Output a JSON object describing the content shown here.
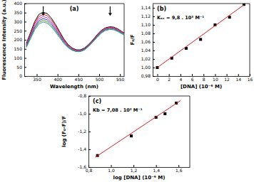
{
  "chart_data": [
    {
      "type": "line",
      "title": "(a)",
      "xlabel": "Wavelength (nm)",
      "ylabel": "Fluorescence Intensity (a.u.)",
      "x": [
        325,
        335,
        345,
        355,
        365,
        375,
        385,
        395,
        405,
        415,
        425,
        435,
        445,
        455,
        465,
        475,
        485,
        495,
        505,
        515,
        525,
        535,
        545,
        555,
        560
      ],
      "series": [
        {
          "color": "#000000",
          "line_style": "solid",
          "values": [
            180,
            240,
            300,
            340,
            352,
            345,
            320,
            285,
            245,
            205,
            175,
            155,
            145,
            145,
            155,
            175,
            200,
            228,
            252,
            266,
            272,
            270,
            260,
            245,
            238
          ]
        },
        {
          "color": "#e31a1c",
          "line_style": "solid",
          "values": [
            175,
            232,
            290,
            328,
            340,
            334,
            310,
            276,
            238,
            200,
            171,
            152,
            142,
            142,
            152,
            172,
            197,
            225,
            249,
            263,
            269,
            267,
            257,
            243,
            236
          ]
        },
        {
          "color": "#d62fd6",
          "line_style": "solid",
          "values": [
            170,
            225,
            280,
            316,
            328,
            322,
            299,
            267,
            231,
            195,
            167,
            149,
            140,
            140,
            150,
            170,
            195,
            222,
            246,
            260,
            266,
            264,
            254,
            240,
            233
          ]
        },
        {
          "color": "#1f3fd0",
          "line_style": "solid",
          "values": [
            166,
            218,
            270,
            305,
            317,
            311,
            289,
            258,
            224,
            190,
            163,
            146,
            138,
            138,
            148,
            168,
            192,
            219,
            243,
            257,
            263,
            261,
            251,
            237,
            231
          ]
        },
        {
          "color": "#6b8e23",
          "line_style": "solid",
          "values": [
            162,
            212,
            262,
            296,
            307,
            301,
            280,
            250,
            218,
            185,
            160,
            144,
            136,
            136,
            146,
            166,
            190,
            216,
            240,
            254,
            260,
            258,
            248,
            235,
            229
          ]
        },
        {
          "color": "#2a9d9d",
          "line_style": "solid",
          "values": [
            158,
            206,
            254,
            287,
            298,
            292,
            272,
            243,
            212,
            181,
            157,
            142,
            135,
            135,
            144,
            164,
            188,
            213,
            237,
            251,
            257,
            255,
            245,
            232,
            226
          ]
        }
      ],
      "xlim": [
        320,
        560
      ],
      "xticks": [
        350,
        400,
        450,
        500,
        550
      ],
      "ylim": [
        0,
        400
      ],
      "yticks": [
        0,
        50,
        100,
        150,
        200,
        250,
        300,
        350,
        400
      ],
      "grid": false
    },
    {
      "type": "scatter",
      "title": "(b)",
      "xlabel": "[DNA] (10⁻⁶ M)",
      "ylabel": "F₀/F",
      "annotations": [
        "Kₛᵥ = 9,8 . 10³ M⁻¹"
      ],
      "series": [
        {
          "type": "scatter",
          "marker": "square",
          "color": "#000000",
          "x": [
            0,
            2.5,
            5,
            7.5,
            10,
            12.5,
            15
          ],
          "values": [
            1.0,
            1.022,
            1.045,
            1.066,
            1.1,
            1.118,
            1.148
          ]
        },
        {
          "type": "line",
          "line_style": "solid",
          "color": "#e31a1c",
          "x": [
            0,
            15
          ],
          "values": [
            1.0,
            1.147
          ]
        }
      ],
      "xlim": [
        -0.8,
        16
      ],
      "xticks": [
        0,
        2,
        4,
        6,
        8,
        10,
        12,
        14,
        16
      ],
      "ylim": [
        0.98,
        1.15
      ],
      "yticks": [
        {
          "value": 0.98,
          "label": "0,98"
        },
        {
          "value": 1.0,
          "label": "1,00"
        },
        {
          "value": 1.02,
          "label": "1,02"
        },
        {
          "value": 1.04,
          "label": "1,04"
        },
        {
          "value": 1.06,
          "label": "1,06"
        },
        {
          "value": 1.08,
          "label": "1,08"
        },
        {
          "value": 1.1,
          "label": "1,10"
        },
        {
          "value": 1.12,
          "label": "1,12"
        },
        {
          "value": 1.14,
          "label": "1,14"
        }
      ],
      "grid": false
    },
    {
      "type": "scatter",
      "title": "(c)",
      "xlabel": "log [DNA] (10⁻⁶ M)",
      "ylabel": "log (F₀-F)/F",
      "annotations": [
        "Kb = 7,08 . 10³ M⁻¹"
      ],
      "series": [
        {
          "type": "scatter",
          "marker": "square",
          "color": "#000000",
          "x": [
            0.88,
            1.18,
            1.4,
            1.48,
            1.58
          ],
          "values": [
            -1.47,
            -1.25,
            -1.04,
            -1.0,
            -0.88
          ]
        },
        {
          "type": "line",
          "line_style": "solid",
          "color": "#e31a1c",
          "x": [
            0.86,
            1.62
          ],
          "values": [
            -1.49,
            -0.85
          ]
        }
      ],
      "xlim": [
        0.8,
        1.7
      ],
      "xticks": [
        {
          "value": 0.8,
          "label": "0,8"
        },
        {
          "value": 1.0,
          "label": "1,0"
        },
        {
          "value": 1.2,
          "label": "1,2"
        },
        {
          "value": 1.4,
          "label": "1,4"
        },
        {
          "value": 1.6,
          "label": "1,6"
        }
      ],
      "ylim": [
        -1.6,
        -0.8
      ],
      "yticks": [
        {
          "value": -1.6,
          "label": "-1,6"
        },
        {
          "value": -1.4,
          "label": "-1,4"
        },
        {
          "value": -1.2,
          "label": "-1,2"
        },
        {
          "value": -1.0,
          "label": "-1,0"
        },
        {
          "value": -0.8,
          "label": "-0,8"
        }
      ],
      "grid": false
    }
  ]
}
